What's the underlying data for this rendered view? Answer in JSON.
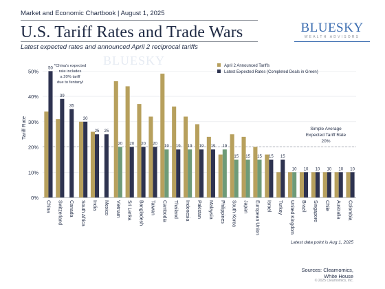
{
  "header": {
    "top_line": "Market and Economic Chartbook | August 1, 2025",
    "title": "U.S. Tariff Rates and Trade Wars",
    "subtitle": "Latest expected rates and announced April 2 reciprocal tariffs"
  },
  "logo": {
    "name": "BLUESKY",
    "tagline": "WEALTH ADVISORS"
  },
  "watermark": "BLUESKY",
  "footer": {
    "data_note": "Latest data point is Aug 1, 2025",
    "sources_line1": "Sources: Clearnomics,",
    "sources_line2": "White House",
    "copyright": "© 2025 Clearnomics, Inc."
  },
  "colors": {
    "april2": "#b7a05d",
    "latest": "#2e3350",
    "latest_deal": "#6e9b78",
    "reference_line": "#9aa0a8"
  },
  "chart_data": {
    "type": "bar",
    "ylabel": "Tariff Rate",
    "ylim": [
      0,
      55
    ],
    "yticks": [
      "0%",
      "10%",
      "20%",
      "30%",
      "40%",
      "50%"
    ],
    "ytick_values": [
      0,
      10,
      20,
      30,
      40,
      50
    ],
    "legend_position": "top-right",
    "categories": [
      "China",
      "Switzerland",
      "Canada",
      "South Africa",
      "India",
      "Mexico",
      "Vietnam",
      "Sri Lanka",
      "Bangladesh",
      "Taiwan",
      "Cambodia",
      "Thailand",
      "Indonesia",
      "Pakistan",
      "Malaysia",
      "Philippines",
      "South Korea",
      "Japan",
      "European Union",
      "Israel",
      "Turkey",
      "United Kingdom",
      "Brazil",
      "Singapore",
      "Chile",
      "Australia",
      "Colombia"
    ],
    "series": [
      {
        "name": "April 2 Announced Tariffs",
        "values": [
          34,
          31,
          null,
          30,
          26,
          null,
          46,
          44,
          37,
          32,
          49,
          36,
          32,
          29,
          24,
          17,
          25,
          24,
          20,
          17,
          10,
          10,
          10,
          10,
          10,
          10,
          10
        ]
      },
      {
        "name": "Latest Expected Rates (Completed Deals in Green)",
        "values": [
          50,
          39,
          35,
          30,
          25,
          25,
          20,
          20,
          20,
          20,
          19,
          19,
          19,
          19,
          19,
          19,
          15,
          15,
          15,
          15,
          15,
          10,
          10,
          10,
          10,
          10,
          10
        ],
        "completed_deal": [
          false,
          false,
          false,
          false,
          false,
          false,
          true,
          false,
          false,
          false,
          true,
          false,
          true,
          false,
          false,
          true,
          true,
          true,
          true,
          false,
          false,
          true,
          false,
          false,
          false,
          false,
          false
        ]
      }
    ],
    "bar_labels": [
      "50",
      "39",
      "35",
      "30",
      "25",
      "25",
      "20",
      "20",
      "20",
      "20",
      "19",
      "19",
      "19",
      "19",
      "19",
      "19",
      "15",
      "15",
      "15",
      "15",
      "15",
      "10",
      "10",
      "10",
      "10",
      "10",
      "10"
    ],
    "reference_line": {
      "value": 20,
      "label_line1": "Simple Average",
      "label_line2": "Expected Tariff Rate",
      "label_line3": "20%"
    },
    "annotation": {
      "line1": "*China's expected",
      "line2": "rate includes",
      "line3": "a 20% tariff",
      "line4": "due to fentanyl"
    }
  }
}
